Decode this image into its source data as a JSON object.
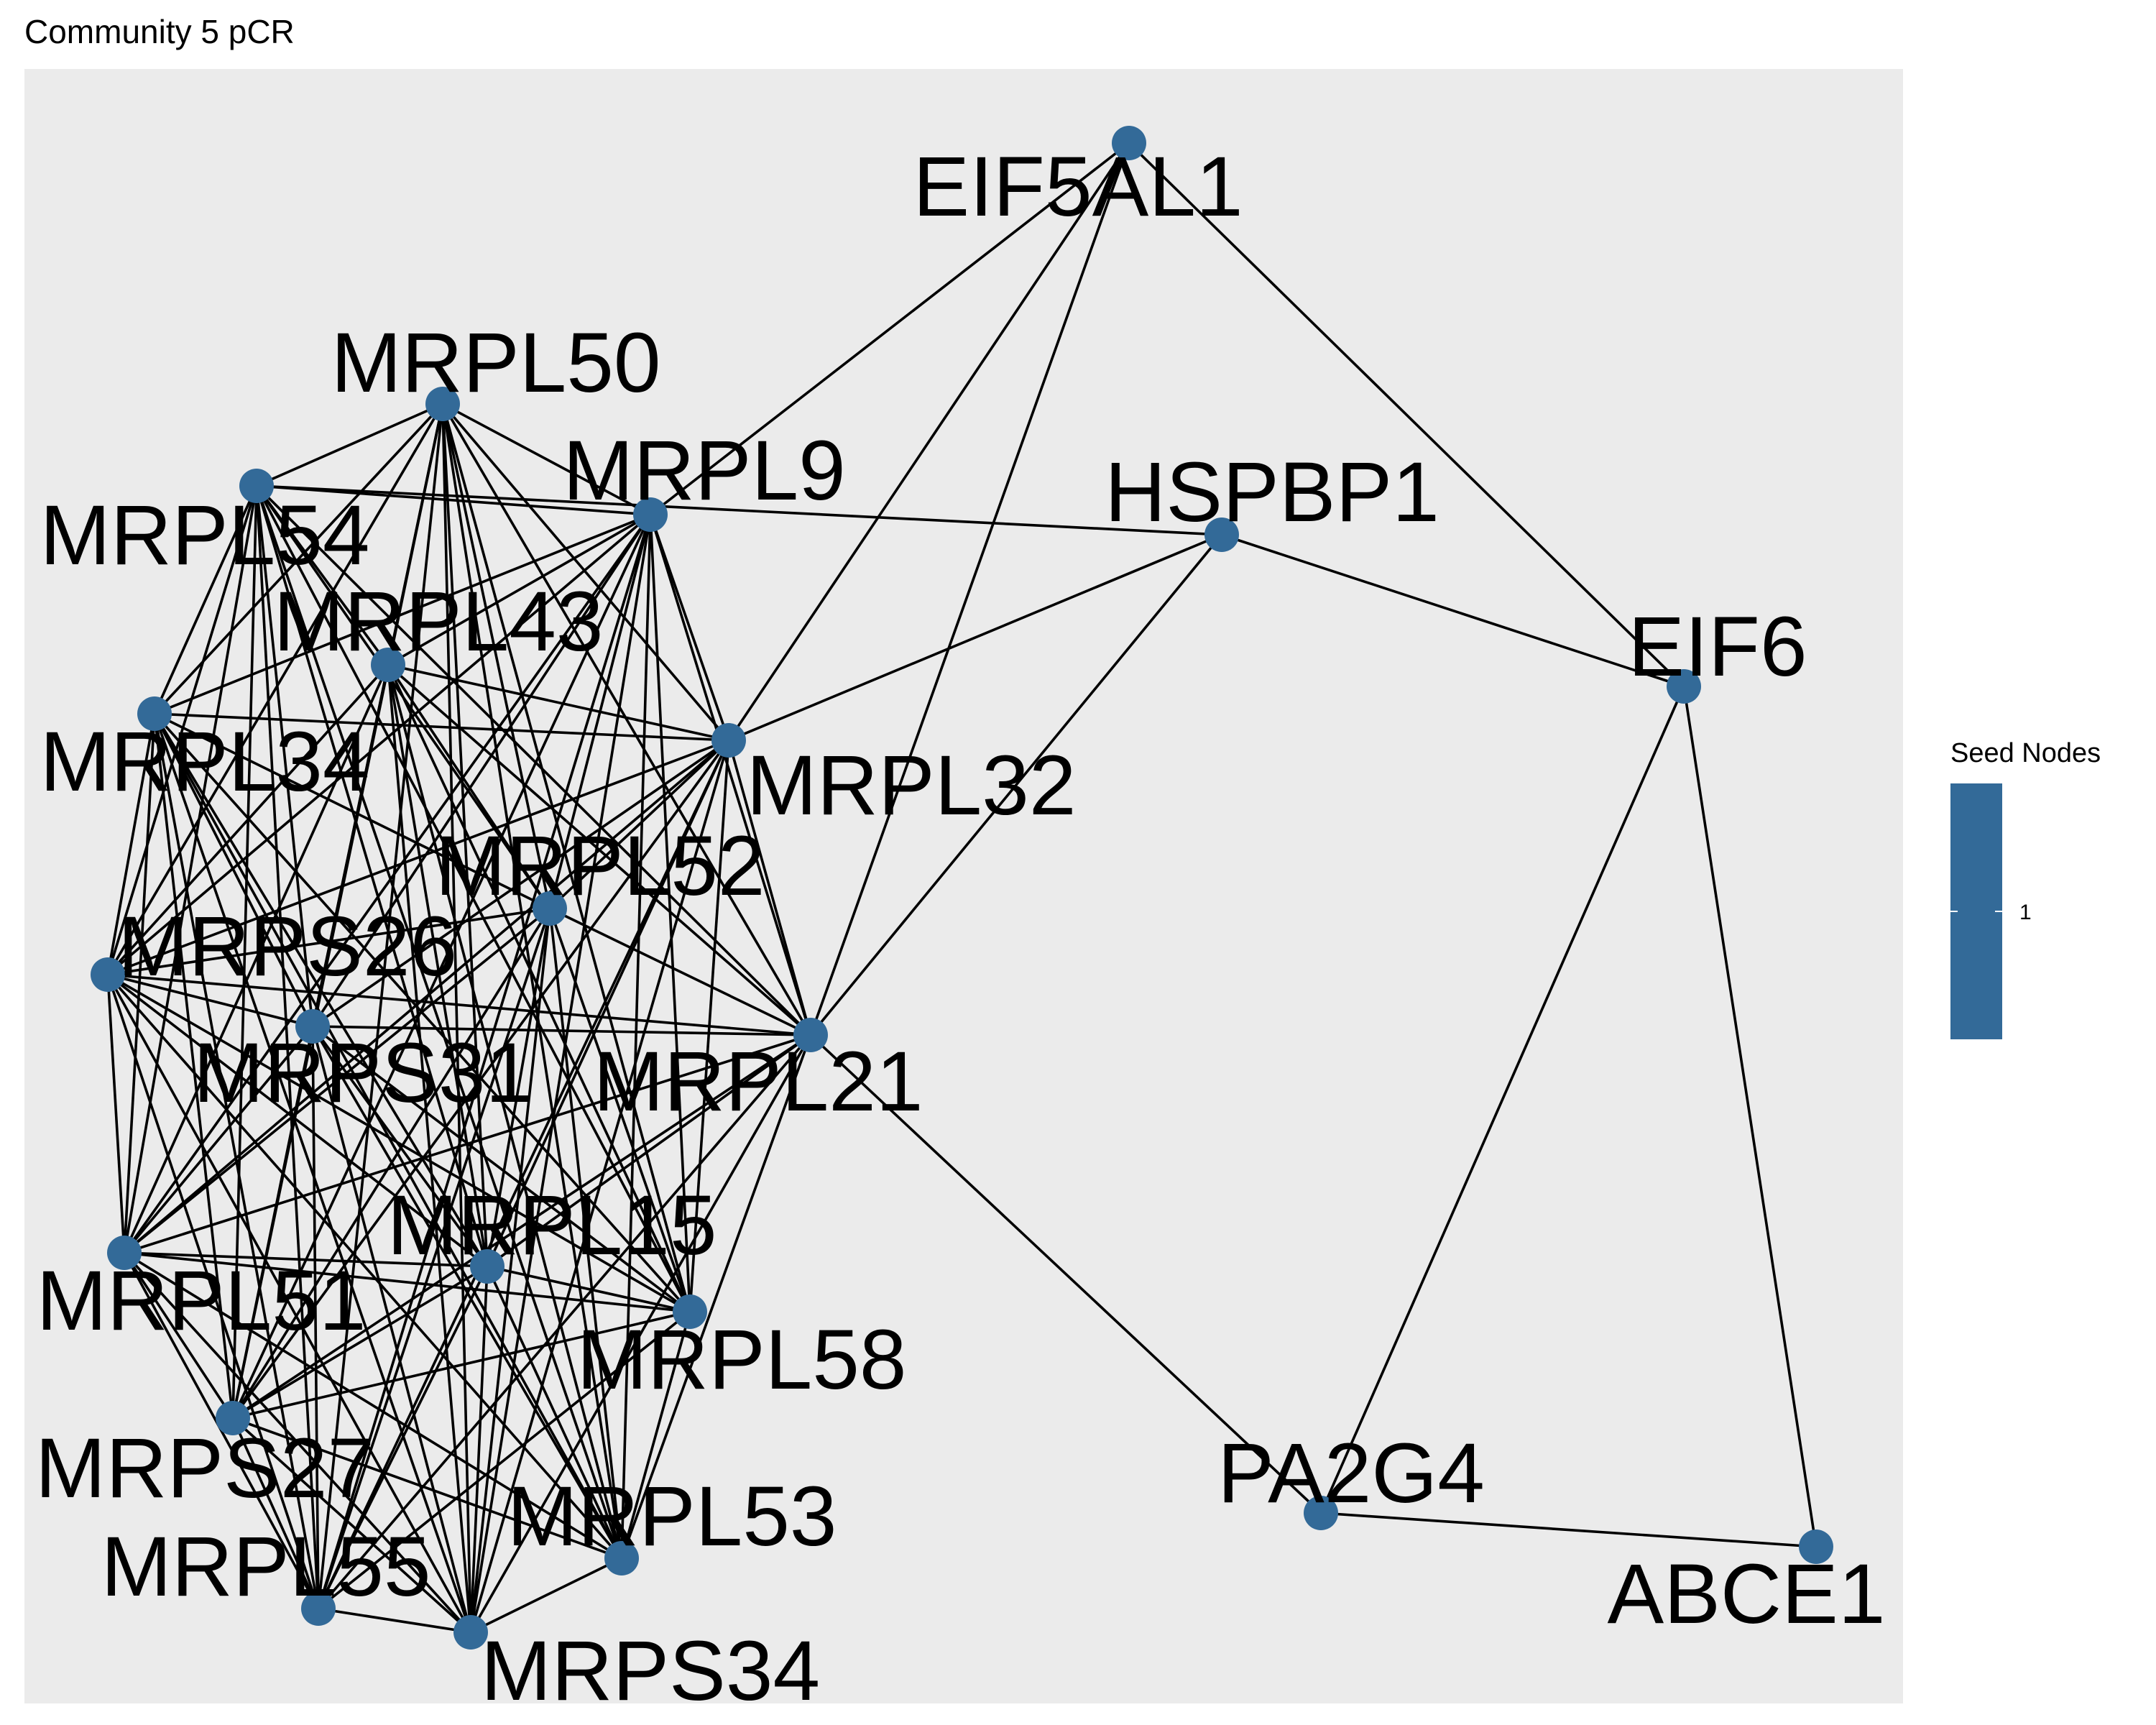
{
  "title": "Community 5 pCR",
  "colors": {
    "panel": "#ebebeb",
    "node": "#336a98",
    "edge": "#000000"
  },
  "legend": {
    "title": "Seed Nodes",
    "tick_label": "1"
  },
  "nodes": [
    {
      "id": "EIF5AL1",
      "label": "EIF5AL1"
    },
    {
      "id": "HSPBP1",
      "label": "HSPBP1"
    },
    {
      "id": "EIF6",
      "label": "EIF6"
    },
    {
      "id": "PA2G4",
      "label": "PA2G4"
    },
    {
      "id": "ABCE1",
      "label": "ABCE1"
    },
    {
      "id": "MRPL50",
      "label": "MRPL50"
    },
    {
      "id": "MRPL54",
      "label": "MRPL54"
    },
    {
      "id": "MRPL9",
      "label": "MRPL9"
    },
    {
      "id": "MRPL43",
      "label": "MRPL43"
    },
    {
      "id": "MRPL34",
      "label": "MRPL34"
    },
    {
      "id": "MRPL32",
      "label": "MRPL32"
    },
    {
      "id": "MRPL52",
      "label": "MRPL52"
    },
    {
      "id": "MRPS26",
      "label": "MRPS26"
    },
    {
      "id": "MRPS31",
      "label": "MRPS31"
    },
    {
      "id": "MRPL21",
      "label": "MRPL21"
    },
    {
      "id": "MRPL15",
      "label": "MRPL15"
    },
    {
      "id": "MRPL51",
      "label": "MRPL51"
    },
    {
      "id": "MRPL58",
      "label": "MRPL58"
    },
    {
      "id": "MRPS27",
      "label": "MRPS27"
    },
    {
      "id": "MRPL53",
      "label": "MRPL53"
    },
    {
      "id": "MRPL55",
      "label": "MRPL55"
    },
    {
      "id": "MRPS34",
      "label": "MRPS34"
    }
  ],
  "cluster": [
    "MRPL50",
    "MRPL54",
    "MRPL9",
    "MRPL43",
    "MRPL34",
    "MRPL32",
    "MRPL52",
    "MRPS26",
    "MRPS31",
    "MRPL21",
    "MRPL15",
    "MRPL51",
    "MRPL58",
    "MRPS27",
    "MRPL53",
    "MRPL55",
    "MRPS34"
  ],
  "edges": [
    [
      "EIF5AL1",
      "MRPL9"
    ],
    [
      "EIF5AL1",
      "MRPL32"
    ],
    [
      "EIF5AL1",
      "MRPL21"
    ],
    [
      "EIF5AL1",
      "EIF6"
    ],
    [
      "HSPBP1",
      "MRPL54"
    ],
    [
      "HSPBP1",
      "MRPL32"
    ],
    [
      "HSPBP1",
      "MRPL21"
    ],
    [
      "HSPBP1",
      "EIF6"
    ],
    [
      "EIF6",
      "PA2G4"
    ],
    [
      "EIF6",
      "ABCE1"
    ],
    [
      "PA2G4",
      "ABCE1"
    ],
    [
      "PA2G4",
      "MRPL21"
    ]
  ]
}
